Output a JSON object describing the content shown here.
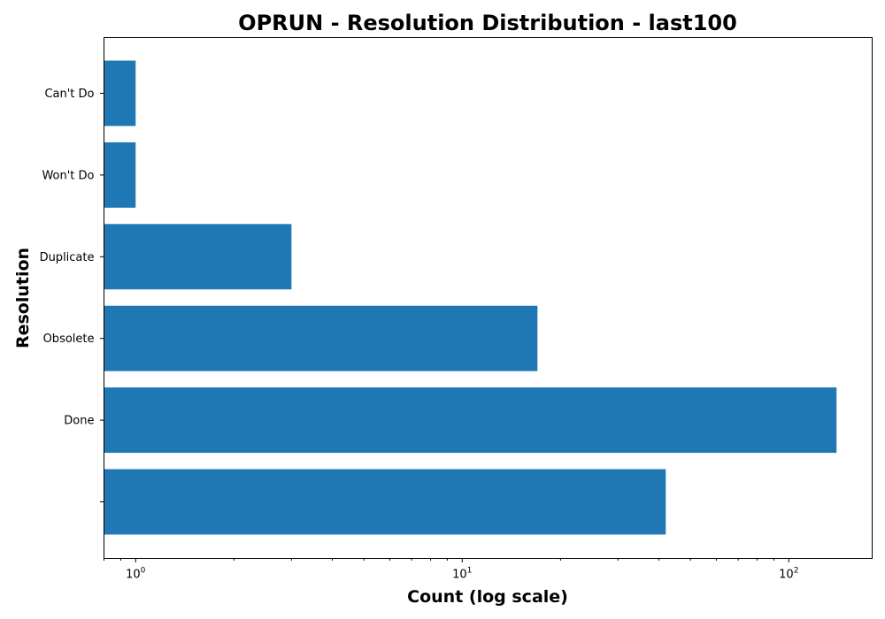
{
  "chart_data": {
    "type": "bar",
    "orientation": "horizontal",
    "title": "OPRUN - Resolution Distribution - last100",
    "xlabel": "Count (log scale)",
    "ylabel": "Resolution",
    "x_scale": "log",
    "xlim": [
      0.8,
      180
    ],
    "x_ticks": [
      {
        "value": 1,
        "base": "10",
        "exp": "0"
      },
      {
        "value": 10,
        "base": "10",
        "exp": "1"
      },
      {
        "value": 100,
        "base": "10",
        "exp": "2"
      }
    ],
    "categories": [
      "",
      "Done",
      "Obsolete",
      "Duplicate",
      "Won't Do",
      "Can't Do"
    ],
    "values": [
      42,
      140,
      17,
      3,
      1,
      1
    ],
    "bar_color": "#1f77b4",
    "grid": false,
    "legend": "none"
  }
}
